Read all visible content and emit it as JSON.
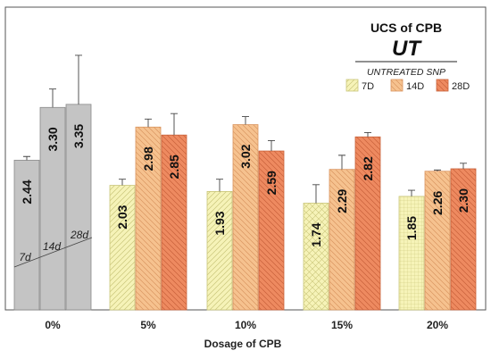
{
  "chart_data": {
    "type": "bar",
    "title": "UCS of CPB",
    "subtitle": "UT",
    "legend_caption": "UNTREATED SNP",
    "xlabel": "Dosage of CPB",
    "ylabel": "",
    "ylim": [
      0,
      4.1
    ],
    "grid": false,
    "legend_position": "top-right",
    "categories": [
      "0%",
      "5%",
      "10%",
      "15%",
      "20%"
    ],
    "series": [
      {
        "name": "7D",
        "color": "#f6f3b8",
        "hatch_color": "#c9c57a",
        "values": [
          2.44,
          2.03,
          1.93,
          1.74,
          1.85
        ],
        "value_labels": [
          "2.44",
          "2.03",
          "1.93",
          "1.74",
          "1.85"
        ],
        "errors": [
          0.06,
          0.1,
          0.2,
          0.3,
          0.1
        ]
      },
      {
        "name": "14D",
        "color": "#f6c28f",
        "hatch_color": "#d99560",
        "values": [
          3.3,
          2.98,
          3.02,
          2.29,
          2.26
        ],
        "value_labels": [
          "3.30",
          "2.98",
          "3.02",
          "2.29",
          "2.26"
        ],
        "errors": [
          0.3,
          0.13,
          0.13,
          0.23,
          0.02
        ]
      },
      {
        "name": "28D",
        "color": "#ee8a60",
        "hatch_color": "#c8613a",
        "values": [
          3.35,
          2.85,
          2.59,
          2.82,
          2.3
        ],
        "value_labels": [
          "3.35",
          "2.85",
          "2.59",
          "2.82",
          "2.30"
        ],
        "errors": [
          0.8,
          0.35,
          0.17,
          0.07,
          0.09
        ]
      }
    ],
    "control_group": {
      "category": "0%",
      "color": "#c4c4c4",
      "edge_color": "#8a8a8a",
      "bar_labels": [
        "7d",
        "14d",
        "28d"
      ]
    }
  }
}
